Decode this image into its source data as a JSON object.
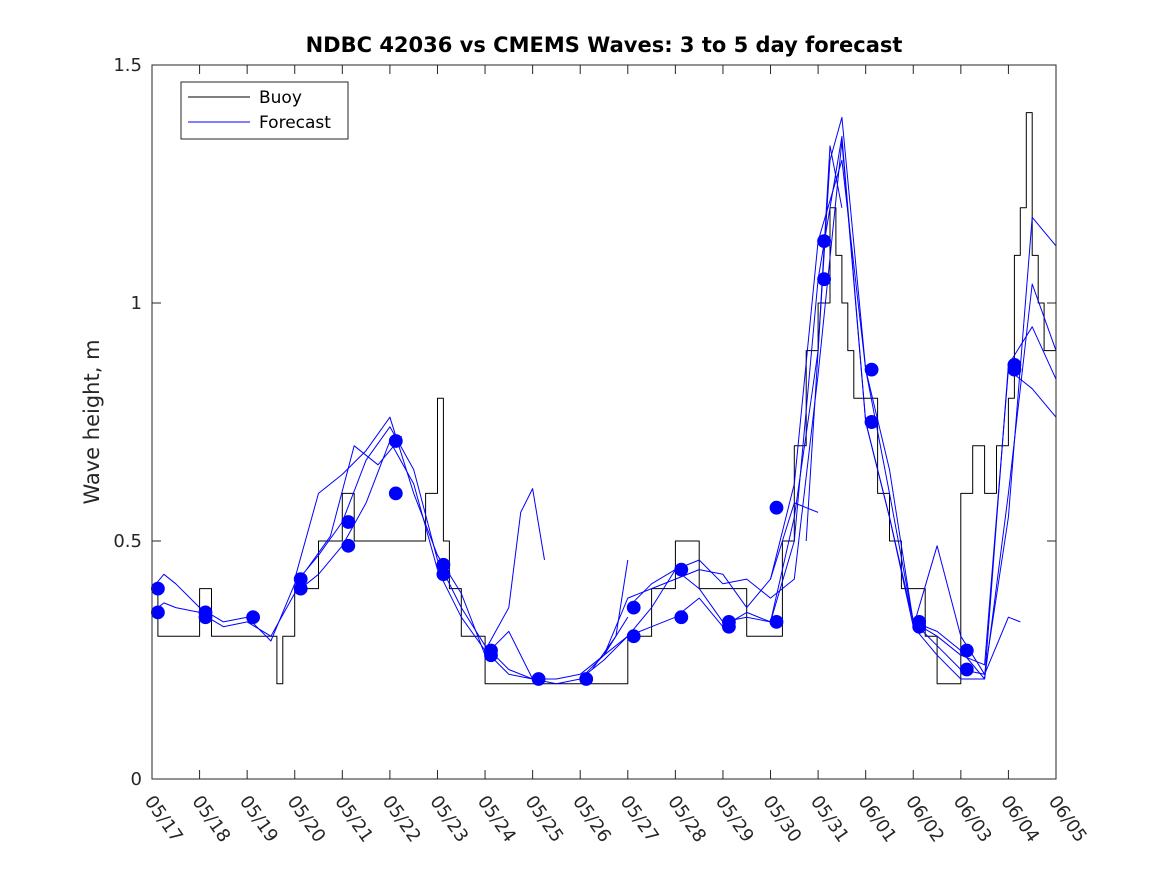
{
  "chart_data": {
    "type": "line",
    "title": "NDBC 42036 vs CMEMS Waves: 3 to 5 day forecast",
    "xlabel": "",
    "ylabel": "Wave height, m",
    "x_unit": "days",
    "xlim": [
      "05/17",
      "06/05"
    ],
    "x_ticks": [
      "05/17",
      "05/18",
      "05/19",
      "05/20",
      "05/21",
      "05/22",
      "05/23",
      "05/24",
      "05/25",
      "05/26",
      "05/27",
      "05/28",
      "05/29",
      "05/30",
      "05/31",
      "06/01",
      "06/02",
      "06/03",
      "06/04",
      "06/05"
    ],
    "ylim": [
      0,
      1.5
    ],
    "y_ticks": [
      "0",
      "0.5",
      "1",
      "1.5"
    ],
    "grid": false,
    "legend": {
      "position": "top-left",
      "entries": [
        {
          "name": "Buoy",
          "color": "#000000"
        },
        {
          "name": "Forecast",
          "color": "#0000ff"
        }
      ]
    },
    "series": [
      {
        "name": "Buoy",
        "color": "#000000",
        "style": "step-line",
        "x": [
          "05/17 00:00",
          "05/17 03:00",
          "05/17 06:00",
          "05/17 12:00",
          "05/18 00:00",
          "05/18 06:00",
          "05/18 12:00",
          "05/19 00:00",
          "05/19 12:00",
          "05/19 15:00",
          "05/19 18:00",
          "05/19 21:00",
          "05/20 00:00",
          "05/20 06:00",
          "05/20 12:00",
          "05/20 18:00",
          "05/21 00:00",
          "05/21 06:00",
          "05/21 12:00",
          "05/21 18:00",
          "05/22 00:00",
          "05/22 12:00",
          "05/22 18:00",
          "05/23 00:00",
          "05/23 03:00",
          "05/23 06:00",
          "05/23 12:00",
          "05/23 18:00",
          "05/24 00:00",
          "05/24 06:00",
          "05/24 12:00",
          "05/25 00:00",
          "05/25 12:00",
          "05/26 00:00",
          "05/26 12:00",
          "05/27 00:00",
          "05/27 06:00",
          "05/27 12:00",
          "05/27 18:00",
          "05/28 00:00",
          "05/28 06:00",
          "05/28 12:00",
          "05/28 18:00",
          "05/29 00:00",
          "05/29 12:00",
          "05/30 00:00",
          "05/30 06:00",
          "05/30 12:00",
          "05/30 18:00",
          "05/31 00:00",
          "05/31 06:00",
          "05/31 09:00",
          "05/31 12:00",
          "05/31 15:00",
          "05/31 18:00",
          "06/01 00:00",
          "06/01 06:00",
          "06/01 12:00",
          "06/01 18:00",
          "06/02 00:00",
          "06/02 06:00",
          "06/02 12:00",
          "06/02 18:00",
          "06/03 00:00",
          "06/03 06:00",
          "06/03 12:00",
          "06/03 18:00",
          "06/04 00:00",
          "06/04 03:00",
          "06/04 06:00",
          "06/04 09:00",
          "06/04 12:00",
          "06/04 15:00",
          "06/04 18:00",
          "06/05 00:00"
        ],
        "y": [
          0.4,
          0.3,
          0.3,
          0.3,
          0.4,
          0.3,
          0.3,
          0.3,
          0.3,
          0.2,
          0.3,
          0.3,
          0.4,
          0.4,
          0.5,
          0.5,
          0.6,
          0.5,
          0.5,
          0.5,
          0.5,
          0.5,
          0.6,
          0.8,
          0.5,
          0.4,
          0.3,
          0.3,
          0.2,
          0.2,
          0.2,
          0.2,
          0.2,
          0.2,
          0.2,
          0.3,
          0.3,
          0.4,
          0.4,
          0.5,
          0.5,
          0.4,
          0.4,
          0.4,
          0.3,
          0.3,
          0.5,
          0.7,
          0.9,
          1.0,
          1.2,
          1.1,
          1.0,
          0.9,
          0.8,
          0.8,
          0.6,
          0.5,
          0.4,
          0.4,
          0.3,
          0.2,
          0.2,
          0.6,
          0.7,
          0.6,
          0.7,
          0.8,
          1.1,
          1.2,
          1.4,
          1.1,
          1.0,
          0.9,
          0.9
        ]
      },
      {
        "name": "Forecast",
        "color": "#0000ff",
        "x": [
          "05/17 00:00",
          "05/17 06:00",
          "05/17 12:00",
          "05/18 00:00",
          "05/18 12:00",
          "05/19 00:00",
          "05/19 12:00",
          "05/20 00:00",
          "05/20 12:00",
          "05/21 00:00",
          "05/21 12:00",
          "05/22 00:00",
          "05/22 12:00",
          "05/23 00:00",
          "05/23 12:00",
          "05/24 00:00",
          "05/24 12:00",
          "05/25 00:00",
          "05/25 12:00",
          "05/26 00:00",
          "05/26 12:00",
          "05/27 00:00"
        ],
        "y": [
          0.4,
          0.43,
          0.41,
          0.36,
          0.33,
          0.34,
          0.29,
          0.41,
          0.47,
          0.54,
          0.67,
          0.74,
          0.65,
          0.46,
          0.36,
          0.28,
          0.23,
          0.21,
          0.21,
          0.22,
          0.26,
          0.34
        ]
      },
      {
        "name": "Forecast",
        "color": "#0000ff",
        "x": [
          "05/17 00:00",
          "05/17 06:00",
          "05/17 12:00",
          "05/18 00:00",
          "05/18 12:00",
          "05/19 00:00",
          "05/19 12:00",
          "05/20 00:00",
          "05/20 12:00",
          "05/21 00:00",
          "05/21 12:00",
          "05/22 00:00",
          "05/22 12:00",
          "05/23 00:00",
          "05/23 12:00",
          "05/24 00:00",
          "05/24 12:00",
          "05/25 00:00",
          "05/25 12:00",
          "05/26 00:00"
        ],
        "y": [
          0.35,
          0.37,
          0.36,
          0.35,
          0.32,
          0.33,
          0.3,
          0.39,
          0.43,
          0.49,
          0.58,
          0.71,
          0.62,
          0.44,
          0.34,
          0.27,
          0.22,
          0.21,
          0.2,
          0.21
        ]
      },
      {
        "name": "Forecast",
        "color": "#0000ff",
        "x": [
          "05/20 00:00",
          "05/20 12:00",
          "05/21 00:00",
          "05/21 12:00",
          "05/22 00:00",
          "05/22 12:00",
          "05/23 00:00",
          "05/23 12:00",
          "05/24 00:00",
          "05/24 12:00",
          "05/25 00:00"
        ],
        "y": [
          0.42,
          0.6,
          0.64,
          0.69,
          0.76,
          0.6,
          0.47,
          0.39,
          0.26,
          0.31,
          0.21
        ]
      },
      {
        "name": "Forecast",
        "color": "#0000ff",
        "x": [
          "05/20 06:00",
          "05/20 18:00",
          "05/21 06:00",
          "05/21 18:00",
          "05/22 06:00"
        ],
        "y": [
          0.44,
          0.51,
          0.7,
          0.66,
          0.72
        ]
      },
      {
        "name": "Forecast",
        "color": "#0000ff",
        "x": [
          "05/24 00:00",
          "05/24 12:00",
          "05/24 18:00",
          "05/25 00:00",
          "05/25 06:00"
        ],
        "y": [
          0.27,
          0.36,
          0.56,
          0.61,
          0.46
        ]
      },
      {
        "name": "Forecast",
        "color": "#0000ff",
        "x": [
          "05/26 00:00",
          "05/26 12:00",
          "05/27 00:00",
          "05/27 12:00",
          "05/28 00:00",
          "05/28 12:00",
          "05/29 00:00",
          "05/29 12:00",
          "05/30 00:00",
          "05/30 12:00",
          "05/31 00:00",
          "05/31 06:00",
          "05/31 12:00",
          "06/01 00:00",
          "06/01 12:00",
          "06/02 00:00",
          "06/02 12:00",
          "06/03 00:00",
          "06/03 12:00",
          "06/04 00:00",
          "06/04 12:00",
          "06/05 00:00"
        ],
        "y": [
          0.21,
          0.26,
          0.3,
          0.36,
          0.44,
          0.4,
          0.33,
          0.34,
          0.33,
          0.55,
          0.9,
          1.3,
          1.39,
          0.86,
          0.6,
          0.33,
          0.28,
          0.23,
          0.22,
          0.55,
          1.18,
          1.12
        ]
      },
      {
        "name": "Forecast",
        "color": "#0000ff",
        "x": [
          "05/26 00:00",
          "05/26 12:00",
          "05/27 00:00",
          "05/27 12:00",
          "05/28 00:00",
          "05/28 12:00",
          "05/29 00:00",
          "05/29 12:00",
          "05/30 00:00",
          "05/30 12:00",
          "05/31 00:00",
          "05/31 12:00",
          "06/01 00:00",
          "06/01 12:00",
          "06/02 00:00",
          "06/02 12:00",
          "06/03 00:00",
          "06/03 12:00",
          "06/04 00:00",
          "06/04 12:00",
          "06/05 00:00"
        ],
        "y": [
          0.21,
          0.25,
          0.3,
          0.32,
          0.34,
          0.38,
          0.32,
          0.35,
          0.33,
          0.5,
          1.05,
          1.35,
          0.75,
          0.55,
          0.32,
          0.26,
          0.21,
          0.21,
          0.6,
          1.04,
          0.9
        ]
      },
      {
        "name": "Forecast",
        "color": "#0000ff",
        "x": [
          "05/27 00:00",
          "05/27 12:00",
          "05/28 00:00",
          "05/28 12:00",
          "05/29 00:00",
          "05/29 12:00",
          "05/30 00:00",
          "05/30 12:00",
          "05/31 00:00",
          "05/31 12:00",
          "06/01 00:00",
          "06/01 12:00",
          "06/02 00:00",
          "06/02 12:00",
          "06/03 00:00",
          "06/03 12:00",
          "06/04 00:00",
          "06/04 12:00",
          "06/05 00:00"
        ],
        "y": [
          0.36,
          0.41,
          0.44,
          0.46,
          0.41,
          0.42,
          0.38,
          0.42,
          0.85,
          1.34,
          0.75,
          0.55,
          0.33,
          0.31,
          0.27,
          0.21,
          0.87,
          0.95,
          0.84
        ]
      },
      {
        "name": "Forecast",
        "color": "#0000ff",
        "x": [
          "05/30 00:00",
          "05/30 12:00",
          "05/31 00:00",
          "05/31 12:00",
          "06/01 00:00",
          "06/01 12:00",
          "06/02 00:00",
          "06/02 12:00",
          "06/03 00:00",
          "06/03 12:00",
          "06/04 00:00",
          "06/04 12:00",
          "06/05 00:00"
        ],
        "y": [
          0.42,
          0.62,
          1.13,
          1.3,
          0.86,
          0.65,
          0.33,
          0.3,
          0.26,
          0.24,
          0.86,
          0.82,
          0.76
        ]
      },
      {
        "name": "Forecast",
        "color": "#0000ff",
        "x": [
          "05/26 12:00",
          "05/27 00:00",
          "05/27 12:00",
          "05/28 00:00",
          "05/28 12:00",
          "05/29 00:00",
          "05/29 12:00",
          "05/30 00:00",
          "05/30 12:00",
          "05/31 00:00"
        ],
        "y": [
          0.26,
          0.38,
          0.4,
          0.42,
          0.44,
          0.43,
          0.36,
          0.42,
          0.58,
          0.56
        ]
      },
      {
        "name": "Forecast",
        "color": "#0000ff",
        "x": [
          "05/26 06:00",
          "05/26 18:00",
          "05/27 00:00"
        ],
        "y": [
          0.23,
          0.3,
          0.46
        ]
      },
      {
        "name": "Forecast",
        "color": "#0000ff",
        "x": [
          "05/30 18:00",
          "05/31 00:00",
          "05/31 06:00",
          "05/31 12:00"
        ],
        "y": [
          0.5,
          0.9,
          1.33,
          1.2
        ]
      },
      {
        "name": "Forecast",
        "color": "#0000ff",
        "x": [
          "06/02 00:00",
          "06/02 12:00",
          "06/03 00:00",
          "06/03 06:00",
          "06/03 12:00",
          "06/04 00:00",
          "06/04 06:00"
        ],
        "y": [
          0.32,
          0.49,
          0.3,
          0.26,
          0.22,
          0.34,
          0.33
        ]
      }
    ],
    "markers": {
      "name": "Forecast",
      "color": "#0000ff",
      "x": [
        "05/17 03:00",
        "05/17 03:00",
        "05/18 03:00",
        "05/18 03:00",
        "05/19 03:00",
        "05/20 03:00",
        "05/20 03:00",
        "05/21 03:00",
        "05/21 03:00",
        "05/22 03:00",
        "05/22 03:00",
        "05/23 03:00",
        "05/23 03:00",
        "05/24 03:00",
        "05/24 03:00",
        "05/25 03:00",
        "05/26 03:00",
        "05/27 03:00",
        "05/27 03:00",
        "05/28 03:00",
        "05/28 03:00",
        "05/29 03:00",
        "05/29 03:00",
        "05/30 03:00",
        "05/30 03:00",
        "05/31 03:00",
        "05/31 03:00",
        "06/01 03:00",
        "06/01 03:00",
        "06/01 03:00",
        "06/02 03:00",
        "06/02 03:00",
        "06/03 03:00",
        "06/03 03:00",
        "06/04 03:00",
        "06/04 03:00"
      ],
      "y": [
        0.4,
        0.35,
        0.35,
        0.34,
        0.34,
        0.42,
        0.4,
        0.54,
        0.49,
        0.71,
        0.6,
        0.45,
        0.43,
        0.27,
        0.26,
        0.21,
        0.21,
        0.36,
        0.3,
        0.44,
        0.34,
        0.33,
        0.32,
        0.57,
        0.33,
        1.13,
        1.05,
        0.86,
        0.75,
        0.75,
        0.33,
        0.32,
        0.27,
        0.23,
        0.87,
        0.86
      ]
    }
  }
}
